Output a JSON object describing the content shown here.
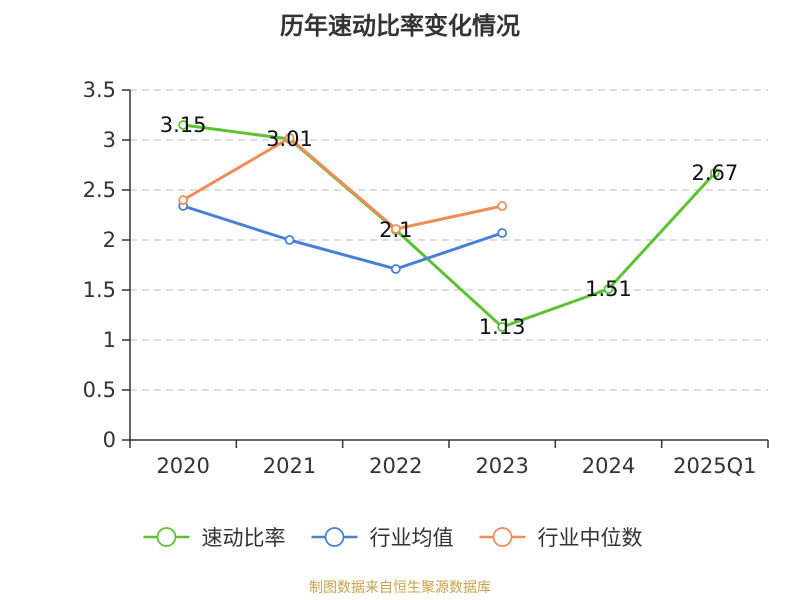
{
  "title": "历年速动比率变化情况",
  "source": "制图数据来自恒生聚源数据库",
  "chart_data": {
    "type": "line",
    "categories": [
      "2020",
      "2021",
      "2022",
      "2023",
      "2024",
      "2025Q1"
    ],
    "ylim": [
      0,
      3.5
    ],
    "yticks": [
      "0",
      "0.5",
      "1",
      "1.5",
      "2",
      "2.5",
      "3",
      "3.5"
    ],
    "grid": true,
    "legend_position": "bottom",
    "series": [
      {
        "name": "速动比率",
        "color": "#5cc234",
        "values": [
          3.15,
          3.01,
          2.1,
          1.13,
          1.51,
          2.67
        ],
        "labels": [
          "3.15",
          "3.01",
          "2.1",
          "1.13",
          "1.51",
          "2.67"
        ]
      },
      {
        "name": "行业均值",
        "color": "#4a7fd8",
        "values": [
          2.34,
          2.0,
          1.71,
          2.07,
          null,
          null
        ]
      },
      {
        "name": "行业中位数",
        "color": "#f08c5a",
        "values": [
          2.4,
          3.02,
          2.11,
          2.34,
          null,
          null
        ]
      }
    ]
  }
}
